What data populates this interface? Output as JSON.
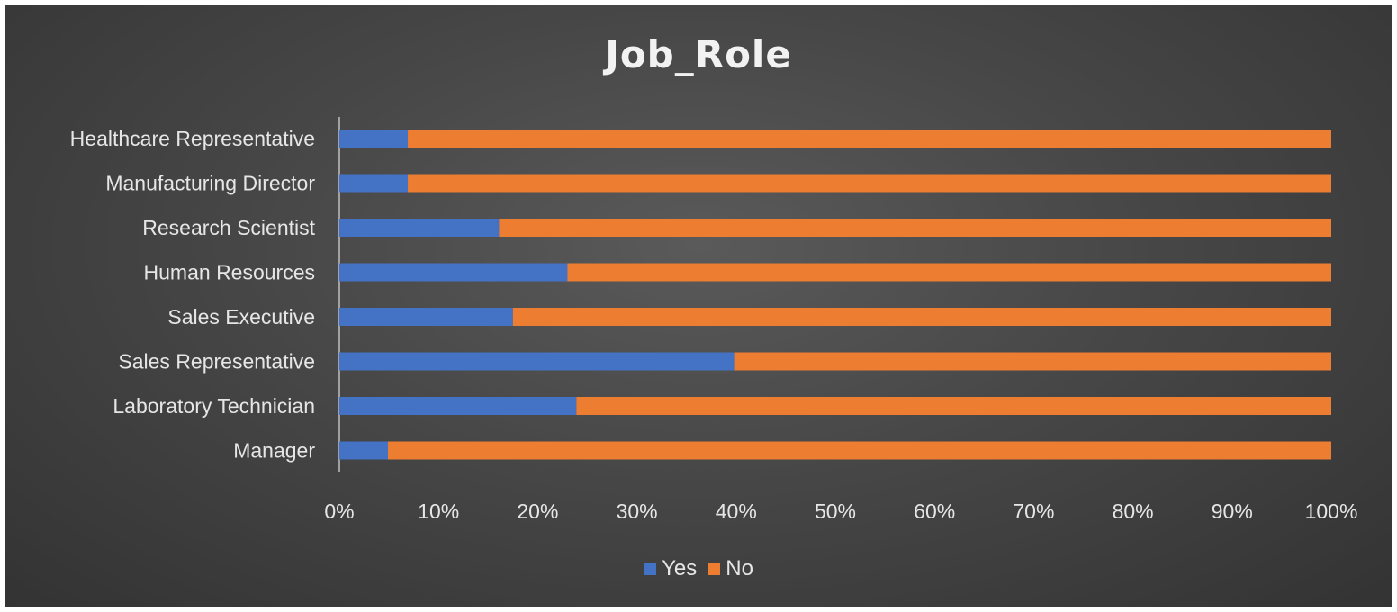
{
  "chart_data": {
    "type": "bar",
    "orientation": "horizontal",
    "stacked": "percent",
    "title": "Job_Role",
    "xlabel": "",
    "ylabel": "",
    "categories": [
      "Healthcare Representative",
      "Manufacturing Director",
      "Research Scientist",
      "Human Resources",
      "Sales Executive",
      "Sales Representative",
      "Laboratory Technician",
      "Manager"
    ],
    "series": [
      {
        "name": "Yes",
        "color": "#4472c4",
        "values": [
          6.9,
          6.9,
          16.1,
          23.0,
          17.5,
          39.8,
          23.9,
          4.9
        ]
      },
      {
        "name": "No",
        "color": "#ed7d31",
        "values": [
          93.1,
          93.1,
          83.9,
          77.0,
          82.5,
          60.2,
          76.1,
          95.1
        ]
      }
    ],
    "xlim": [
      0,
      100
    ],
    "xticks": [
      "0%",
      "10%",
      "20%",
      "30%",
      "40%",
      "50%",
      "60%",
      "70%",
      "80%",
      "90%",
      "100%"
    ],
    "grid": false,
    "legend": "bottom"
  }
}
